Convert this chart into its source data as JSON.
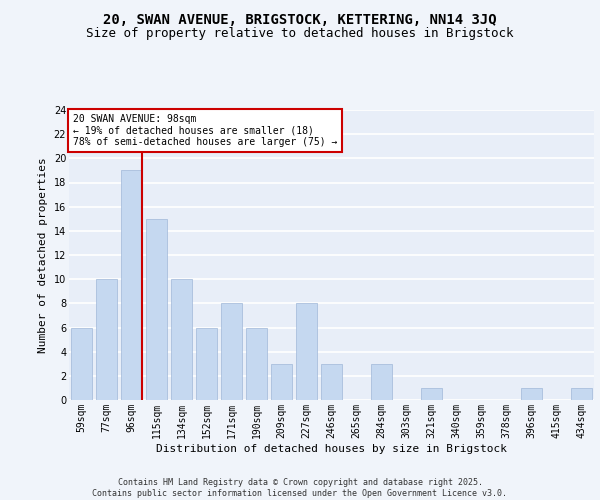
{
  "title": "20, SWAN AVENUE, BRIGSTOCK, KETTERING, NN14 3JQ",
  "subtitle": "Size of property relative to detached houses in Brigstock",
  "xlabel": "Distribution of detached houses by size in Brigstock",
  "ylabel": "Number of detached properties",
  "categories": [
    "59sqm",
    "77sqm",
    "96sqm",
    "115sqm",
    "134sqm",
    "152sqm",
    "171sqm",
    "190sqm",
    "209sqm",
    "227sqm",
    "246sqm",
    "265sqm",
    "284sqm",
    "303sqm",
    "321sqm",
    "340sqm",
    "359sqm",
    "378sqm",
    "396sqm",
    "415sqm",
    "434sqm"
  ],
  "values": [
    6,
    10,
    19,
    15,
    10,
    6,
    8,
    6,
    3,
    8,
    3,
    0,
    3,
    0,
    1,
    0,
    0,
    0,
    1,
    0,
    1
  ],
  "bar_color": "#c5d8f0",
  "bar_edgecolor": "#a0b8d8",
  "vline_x_index": 2,
  "vline_color": "#cc0000",
  "annotation_text": "20 SWAN AVENUE: 98sqm\n← 19% of detached houses are smaller (18)\n78% of semi-detached houses are larger (75) →",
  "annotation_box_color": "#ffffff",
  "annotation_box_edgecolor": "#cc0000",
  "ylim": [
    0,
    24
  ],
  "yticks": [
    0,
    2,
    4,
    6,
    8,
    10,
    12,
    14,
    16,
    18,
    20,
    22,
    24
  ],
  "background_color": "#e8eef8",
  "grid_color": "#ffffff",
  "fig_background_color": "#f0f4fa",
  "footer": "Contains HM Land Registry data © Crown copyright and database right 2025.\nContains public sector information licensed under the Open Government Licence v3.0.",
  "title_fontsize": 10,
  "subtitle_fontsize": 9,
  "xlabel_fontsize": 8,
  "ylabel_fontsize": 8,
  "tick_fontsize": 7,
  "annotation_fontsize": 7,
  "footer_fontsize": 6
}
